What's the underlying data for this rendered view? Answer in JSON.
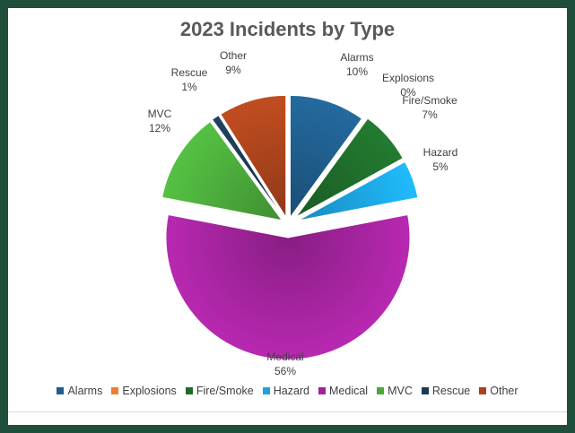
{
  "chart_data": {
    "type": "pie",
    "title": "2023 Incidents by Type",
    "legend_position": "bottom",
    "slices": [
      {
        "name": "Alarms",
        "percent": 10,
        "label": "10%",
        "color": "#1f5c8a"
      },
      {
        "name": "Explosions",
        "percent": 0,
        "label": "0%",
        "color": "#ed7d31"
      },
      {
        "name": "Fire/Smoke",
        "percent": 7,
        "label": "7%",
        "color": "#1e6b2a"
      },
      {
        "name": "Hazard",
        "percent": 5,
        "label": "5%",
        "color": "#1ca3dd"
      },
      {
        "name": "Medical",
        "percent": 56,
        "label": "56%",
        "color": "#a0239a"
      },
      {
        "name": "MVC",
        "percent": 12,
        "label": "12%",
        "color": "#4aa83a"
      },
      {
        "name": "Rescue",
        "percent": 1,
        "label": "1%",
        "color": "#1c3a52"
      },
      {
        "name": "Other",
        "percent": 9,
        "label": "9%",
        "color": "#a8431c"
      }
    ]
  }
}
